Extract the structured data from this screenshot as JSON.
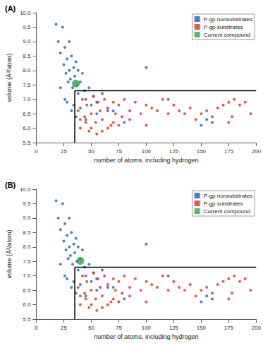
{
  "chart_data": [
    {
      "type": "scatter",
      "label": "(A)",
      "x_label": "number of atoms, including hydrogen",
      "y_label": "volume (Å³/atom)",
      "xlim": [
        0,
        200
      ],
      "xticks": [
        0,
        25,
        50,
        75,
        100,
        125,
        150,
        175,
        200
      ],
      "ylim": [
        5.5,
        10
      ],
      "yticks": [
        5.5,
        {
          "value": 6,
          "label": "6.0"
        },
        6.5,
        {
          "value": 7,
          "label": "7.0"
        },
        7.5,
        {
          "value": 8,
          "label": "8.0"
        },
        8.5,
        {
          "value": 9,
          "label": "9.0"
        },
        9.5,
        {
          "value": 10,
          "label": "10.0"
        }
      ],
      "grid": false,
      "legend": "upper right",
      "series": [
        {
          "name": "P-gp nonsubstrates",
          "color": "#1f5fc4",
          "marker": "circle",
          "x": [
            18,
            20,
            22,
            24,
            25,
            26,
            27,
            28,
            29,
            30,
            30,
            31,
            32,
            33,
            34,
            35,
            36,
            37,
            38,
            38,
            40,
            42,
            44,
            45,
            48,
            50,
            52,
            55,
            60,
            65,
            22,
            26,
            28,
            32,
            34,
            36,
            40,
            45,
            55,
            70,
            80,
            100,
            120,
            155,
            160,
            150
          ],
          "values": [
            9.6,
            9.0,
            8.6,
            9.5,
            8.2,
            8.8,
            7.9,
            8.4,
            7.6,
            9.0,
            8.0,
            7.7,
            8.5,
            7.4,
            8.1,
            7.8,
            8.3,
            7.5,
            8.0,
            7.2,
            7.6,
            7.9,
            7.3,
            7.0,
            7.4,
            6.8,
            7.1,
            6.9,
            7.2,
            6.6,
            7.4,
            7.0,
            6.9,
            6.6,
            6.8,
            6.4,
            6.7,
            6.3,
            6.5,
            6.6,
            6.2,
            8.1,
            7.0,
            6.3,
            6.2,
            6.1
          ]
        },
        {
          "name": "P-gp substrates",
          "color": "#e0301e",
          "marker": "circle",
          "x": [
            38,
            40,
            42,
            44,
            46,
            48,
            50,
            52,
            54,
            56,
            58,
            60,
            62,
            65,
            68,
            70,
            72,
            75,
            78,
            80,
            85,
            90,
            95,
            100,
            105,
            110,
            115,
            120,
            125,
            130,
            135,
            140,
            145,
            150,
            155,
            160,
            165,
            170,
            175,
            180,
            185,
            190,
            195,
            45,
            55,
            65,
            75,
            85,
            100,
            60,
            50,
            175,
            178,
            40,
            70
          ],
          "values": [
            6.6,
            6.0,
            7.0,
            6.4,
            6.8,
            5.9,
            6.5,
            7.1,
            6.2,
            6.9,
            6.6,
            6.3,
            7.0,
            6.7,
            6.1,
            6.9,
            6.5,
            6.8,
            6.4,
            7.0,
            6.6,
            6.9,
            6.5,
            6.8,
            6.7,
            6.6,
            7.0,
            6.5,
            6.8,
            6.6,
            6.5,
            6.7,
            6.3,
            6.5,
            6.6,
            6.4,
            6.7,
            6.8,
            6.9,
            7.0,
            6.8,
            6.9,
            6.5,
            6.2,
            5.8,
            6.0,
            6.1,
            6.3,
            6.1,
            5.9,
            6.0,
            6.2,
            6.4,
            6.3,
            6.2
          ]
        },
        {
          "name": "Current compound",
          "color": "#22a84a",
          "marker": "circle",
          "x": [
            36
          ],
          "values": [
            7.55
          ]
        }
      ],
      "threshold_lines": [
        {
          "color": "#000000",
          "x": [
            35,
            35
          ],
          "values": [
            5.5,
            7.3
          ]
        },
        {
          "color": "#000000",
          "x": [
            35,
            200
          ],
          "values": [
            7.3,
            7.3
          ]
        }
      ]
    },
    {
      "type": "scatter",
      "label": "(B)",
      "x_label": "number of atoms, including hydrogen",
      "y_label": "volume (Å³/atom)",
      "xlim": [
        0,
        200
      ],
      "xticks": [
        0,
        25,
        50,
        75,
        100,
        125,
        150,
        175,
        200
      ],
      "ylim": [
        5.5,
        10
      ],
      "yticks": [
        5.5,
        {
          "value": 6,
          "label": "6.0"
        },
        6.5,
        {
          "value": 7,
          "label": "7.0"
        },
        7.5,
        {
          "value": 8,
          "label": "8.0"
        },
        8.5,
        {
          "value": 9,
          "label": "9.0"
        },
        9.5,
        {
          "value": 10,
          "label": "10.0"
        }
      ],
      "grid": false,
      "legend": "upper right",
      "series": [
        {
          "name": "P-gp nonsubstrates",
          "color": "#1f5fc4",
          "marker": "circle",
          "x": [
            18,
            20,
            22,
            24,
            25,
            26,
            27,
            28,
            29,
            30,
            30,
            31,
            32,
            33,
            34,
            35,
            36,
            37,
            38,
            38,
            40,
            42,
            44,
            45,
            48,
            50,
            52,
            55,
            60,
            65,
            22,
            26,
            28,
            32,
            34,
            36,
            40,
            45,
            55,
            70,
            80,
            100,
            120,
            155,
            160,
            150
          ],
          "values": [
            9.6,
            9.0,
            8.6,
            9.5,
            8.2,
            8.8,
            7.9,
            8.4,
            7.6,
            9.0,
            8.0,
            7.7,
            8.5,
            7.4,
            8.1,
            7.8,
            8.3,
            7.5,
            8.0,
            7.2,
            7.6,
            7.9,
            7.3,
            7.0,
            7.4,
            6.8,
            7.1,
            6.9,
            7.2,
            6.6,
            7.4,
            7.0,
            6.9,
            6.6,
            6.8,
            6.4,
            6.7,
            6.3,
            6.5,
            6.6,
            6.2,
            8.1,
            7.0,
            6.3,
            6.2,
            6.1
          ]
        },
        {
          "name": "P-gp substrates",
          "color": "#e0301e",
          "marker": "circle",
          "x": [
            38,
            40,
            42,
            44,
            46,
            48,
            50,
            52,
            54,
            56,
            58,
            60,
            62,
            65,
            68,
            70,
            72,
            75,
            78,
            80,
            85,
            90,
            95,
            100,
            105,
            110,
            115,
            120,
            125,
            130,
            135,
            140,
            145,
            150,
            155,
            160,
            165,
            170,
            175,
            180,
            185,
            190,
            195,
            45,
            55,
            65,
            75,
            85,
            100,
            60,
            50,
            175,
            178,
            40,
            70
          ],
          "values": [
            6.6,
            6.0,
            7.0,
            6.4,
            6.8,
            5.9,
            6.5,
            7.1,
            6.2,
            6.9,
            6.6,
            6.3,
            7.0,
            6.7,
            6.1,
            6.9,
            6.5,
            6.8,
            6.4,
            7.0,
            6.6,
            6.9,
            6.5,
            6.8,
            6.7,
            6.6,
            7.0,
            6.5,
            6.8,
            6.6,
            6.5,
            6.7,
            6.3,
            6.5,
            6.6,
            6.4,
            6.7,
            6.8,
            6.9,
            7.0,
            6.8,
            6.9,
            6.5,
            6.2,
            5.8,
            6.0,
            6.1,
            6.3,
            6.1,
            5.9,
            6.0,
            6.2,
            6.4,
            6.3,
            6.2
          ]
        },
        {
          "name": "Current compound",
          "color": "#22a84a",
          "marker": "circle",
          "x": [
            40
          ],
          "values": [
            7.52
          ]
        }
      ],
      "threshold_lines": [
        {
          "color": "#000000",
          "x": [
            35,
            35
          ],
          "values": [
            5.5,
            7.3
          ]
        },
        {
          "color": "#000000",
          "x": [
            35,
            200
          ],
          "values": [
            7.3,
            7.3
          ]
        }
      ]
    }
  ]
}
